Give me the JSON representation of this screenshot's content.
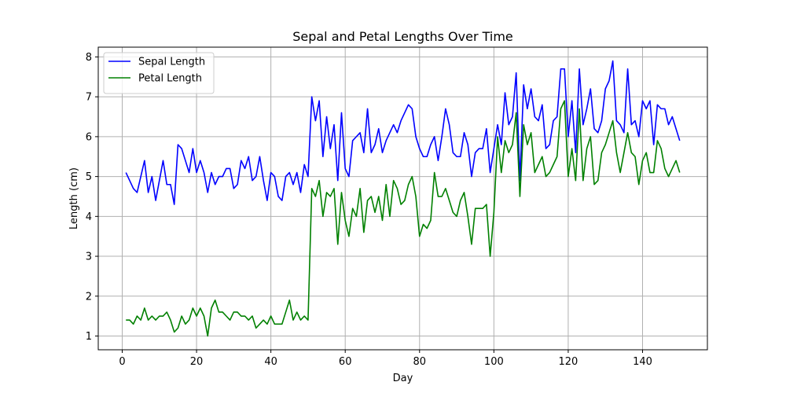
{
  "chart_data": {
    "type": "line",
    "title": "Sepal and Petal Lengths Over Time",
    "xlabel": "Day",
    "ylabel": "Length (cm)",
    "xlim": [
      -6.45,
      157.45
    ],
    "ylim": [
      0.655,
      8.245
    ],
    "xticks": [
      0,
      20,
      40,
      60,
      80,
      100,
      120,
      140
    ],
    "xtick_labels": [
      "0",
      "20",
      "40",
      "60",
      "80",
      "100",
      "120",
      "140"
    ],
    "yticks": [
      1,
      2,
      3,
      4,
      5,
      6,
      7,
      8
    ],
    "ytick_labels": [
      "1",
      "2",
      "3",
      "4",
      "5",
      "6",
      "7",
      "8"
    ],
    "grid": true,
    "legend_position": "top-left",
    "x_start": 1,
    "series": [
      {
        "name": "Sepal Length",
        "color": "#0000ff",
        "values": [
          5.1,
          4.9,
          4.7,
          4.6,
          5.0,
          5.4,
          4.6,
          5.0,
          4.4,
          4.9,
          5.4,
          4.8,
          4.8,
          4.3,
          5.8,
          5.7,
          5.4,
          5.1,
          5.7,
          5.1,
          5.4,
          5.1,
          4.6,
          5.1,
          4.8,
          5.0,
          5.0,
          5.2,
          5.2,
          4.7,
          4.8,
          5.4,
          5.2,
          5.5,
          4.9,
          5.0,
          5.5,
          4.9,
          4.4,
          5.1,
          5.0,
          4.5,
          4.4,
          5.0,
          5.1,
          4.8,
          5.1,
          4.6,
          5.3,
          5.0,
          7.0,
          6.4,
          6.9,
          5.5,
          6.5,
          5.7,
          6.3,
          4.9,
          6.6,
          5.2,
          5.0,
          5.9,
          6.0,
          6.1,
          5.6,
          6.7,
          5.6,
          5.8,
          6.2,
          5.6,
          5.9,
          6.1,
          6.3,
          6.1,
          6.4,
          6.6,
          6.8,
          6.7,
          6.0,
          5.7,
          5.5,
          5.5,
          5.8,
          6.0,
          5.4,
          6.0,
          6.7,
          6.3,
          5.6,
          5.5,
          5.5,
          6.1,
          5.8,
          5.0,
          5.6,
          5.7,
          5.7,
          6.2,
          5.1,
          5.7,
          6.3,
          5.8,
          7.1,
          6.3,
          6.5,
          7.6,
          4.9,
          7.3,
          6.7,
          7.2,
          6.5,
          6.4,
          6.8,
          5.7,
          5.8,
          6.4,
          6.5,
          7.7,
          7.7,
          6.0,
          6.9,
          5.6,
          7.7,
          6.3,
          6.7,
          7.2,
          6.2,
          6.1,
          6.4,
          7.2,
          7.4,
          7.9,
          6.4,
          6.3,
          6.1,
          7.7,
          6.3,
          6.4,
          6.0,
          6.9,
          6.7,
          6.9,
          5.8,
          6.8,
          6.7,
          6.7,
          6.3,
          6.5,
          6.2,
          5.9
        ]
      },
      {
        "name": "Petal Length",
        "color": "#008000",
        "values": [
          1.4,
          1.4,
          1.3,
          1.5,
          1.4,
          1.7,
          1.4,
          1.5,
          1.4,
          1.5,
          1.5,
          1.6,
          1.4,
          1.1,
          1.2,
          1.5,
          1.3,
          1.4,
          1.7,
          1.5,
          1.7,
          1.5,
          1.0,
          1.7,
          1.9,
          1.6,
          1.6,
          1.5,
          1.4,
          1.6,
          1.6,
          1.5,
          1.5,
          1.4,
          1.5,
          1.2,
          1.3,
          1.4,
          1.3,
          1.5,
          1.3,
          1.3,
          1.3,
          1.6,
          1.9,
          1.4,
          1.6,
          1.4,
          1.5,
          1.4,
          4.7,
          4.5,
          4.9,
          4.0,
          4.6,
          4.5,
          4.7,
          3.3,
          4.6,
          3.9,
          3.5,
          4.2,
          4.0,
          4.7,
          3.6,
          4.4,
          4.5,
          4.1,
          4.5,
          3.9,
          4.8,
          4.0,
          4.9,
          4.7,
          4.3,
          4.4,
          4.8,
          5.0,
          4.5,
          3.5,
          3.8,
          3.7,
          3.9,
          5.1,
          4.5,
          4.5,
          4.7,
          4.4,
          4.1,
          4.0,
          4.4,
          4.6,
          4.0,
          3.3,
          4.2,
          4.2,
          4.2,
          4.3,
          3.0,
          4.1,
          6.0,
          5.1,
          5.9,
          5.6,
          5.8,
          6.6,
          4.5,
          6.3,
          5.8,
          6.1,
          5.1,
          5.3,
          5.5,
          5.0,
          5.1,
          5.3,
          5.5,
          6.7,
          6.9,
          5.0,
          5.7,
          4.9,
          6.7,
          4.9,
          5.7,
          6.0,
          4.8,
          4.9,
          5.6,
          5.8,
          6.1,
          6.4,
          5.6,
          5.1,
          5.6,
          6.1,
          5.6,
          5.5,
          4.8,
          5.4,
          5.6,
          5.1,
          5.1,
          5.9,
          5.7,
          5.2,
          5.0,
          5.2,
          5.4,
          5.1
        ]
      }
    ]
  }
}
